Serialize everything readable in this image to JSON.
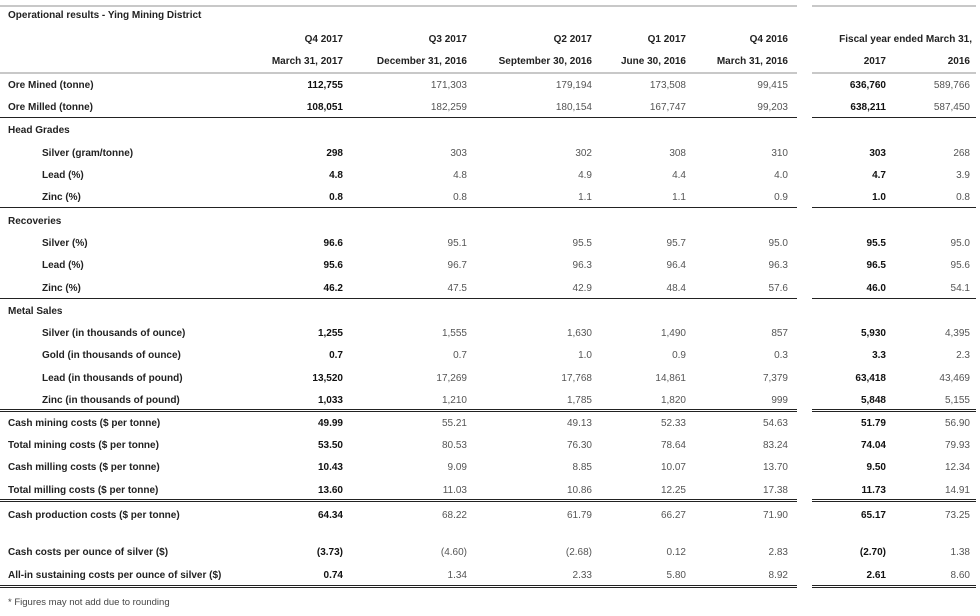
{
  "title": "Operational results - Ying Mining District",
  "columns": [
    {
      "period": "Q4 2017",
      "date": "March 31, 2017"
    },
    {
      "period": "Q3 2017",
      "date": "December 31, 2016"
    },
    {
      "period": "Q2 2017",
      "date": "September 30, 2016"
    },
    {
      "period": "Q1 2017",
      "date": "June 30, 2016"
    },
    {
      "period": "Q4 2016",
      "date": "March 31, 2016"
    }
  ],
  "fiscal_header": "Fiscal year ended March 31,",
  "fiscal_years": [
    "2017",
    "2016"
  ],
  "rows": [
    {
      "label": "Ore Mined (tonne)",
      "indent": false,
      "values": [
        "112,755",
        "171,303",
        "179,194",
        "173,508",
        "99,415",
        "636,760",
        "589,766"
      ]
    },
    {
      "label": "Ore Milled (tonne)",
      "indent": false,
      "values": [
        "108,051",
        "182,259",
        "180,154",
        "167,747",
        "99,203",
        "638,211",
        "587,450"
      ]
    },
    {
      "label": "Head Grades",
      "section": true
    },
    {
      "label": "Silver (gram/tonne)",
      "indent": true,
      "values": [
        "298",
        "303",
        "302",
        "308",
        "310",
        "303",
        "268"
      ]
    },
    {
      "label": "Lead (%)",
      "indent": true,
      "values": [
        "4.8",
        "4.8",
        "4.9",
        "4.4",
        "4.0",
        "4.7",
        "3.9"
      ]
    },
    {
      "label": "Zinc (%)",
      "indent": true,
      "values": [
        "0.8",
        "0.8",
        "1.1",
        "1.1",
        "0.9",
        "1.0",
        "0.8"
      ]
    },
    {
      "label": "Recoveries",
      "section": true
    },
    {
      "label": "Silver (%)",
      "indent": true,
      "values": [
        "96.6",
        "95.1",
        "95.5",
        "95.7",
        "95.0",
        "95.5",
        "95.0"
      ]
    },
    {
      "label": "Lead (%)",
      "indent": true,
      "values": [
        "95.6",
        "96.7",
        "96.3",
        "96.4",
        "96.3",
        "96.5",
        "95.6"
      ]
    },
    {
      "label": "Zinc (%)",
      "indent": true,
      "values": [
        "46.2",
        "47.5",
        "42.9",
        "48.4",
        "57.6",
        "46.0",
        "54.1"
      ]
    },
    {
      "label": "Metal Sales",
      "section": true
    },
    {
      "label": "Silver (in thousands of ounce)",
      "indent": true,
      "values": [
        "1,255",
        "1,555",
        "1,630",
        "1,490",
        "857",
        "5,930",
        "4,395"
      ]
    },
    {
      "label": "Gold (in thousands of ounce)",
      "indent": true,
      "values": [
        "0.7",
        "0.7",
        "1.0",
        "0.9",
        "0.3",
        "3.3",
        "2.3"
      ]
    },
    {
      "label": "Lead (in thousands of pound)",
      "indent": true,
      "values": [
        "13,520",
        "17,269",
        "17,768",
        "14,861",
        "7,379",
        "63,418",
        "43,469"
      ]
    },
    {
      "label": "Zinc (in thousands of pound)",
      "indent": true,
      "values": [
        "1,033",
        "1,210",
        "1,785",
        "1,820",
        "999",
        "5,848",
        "5,155"
      ]
    },
    {
      "label": "Cash mining costs ($ per tonne)",
      "indent": false,
      "values": [
        "49.99",
        "55.21",
        "49.13",
        "52.33",
        "54.63",
        "51.79",
        "56.90"
      ]
    },
    {
      "label": "Total mining costs ($ per tonne)",
      "indent": false,
      "values": [
        "53.50",
        "80.53",
        "76.30",
        "78.64",
        "83.24",
        "74.04",
        "79.93"
      ]
    },
    {
      "label": "Cash milling costs ($ per tonne)",
      "indent": false,
      "values": [
        "10.43",
        "9.09",
        "8.85",
        "10.07",
        "13.70",
        "9.50",
        "12.34"
      ]
    },
    {
      "label": "Total milling costs ($ per tonne)",
      "indent": false,
      "values": [
        "13.60",
        "11.03",
        "10.86",
        "12.25",
        "17.38",
        "11.73",
        "14.91"
      ]
    },
    {
      "label": "Cash production costs ($ per tonne)",
      "indent": false,
      "values": [
        "64.34",
        "68.22",
        "61.79",
        "66.27",
        "71.90",
        "65.17",
        "73.25"
      ]
    },
    {
      "label": "Cash costs per ounce of silver ($)",
      "indent": false,
      "values": [
        "(3.73)",
        "(4.60)",
        "(2.68)",
        "0.12",
        "2.83",
        "(2.70)",
        "1.38"
      ]
    },
    {
      "label": "All-in sustaining costs per ounce of silver ($)",
      "indent": false,
      "values": [
        "0.74",
        "1.34",
        "2.33",
        "5.80",
        "8.92",
        "2.61",
        "8.60"
      ]
    }
  ],
  "footnote": "* Figures may not add due to rounding"
}
